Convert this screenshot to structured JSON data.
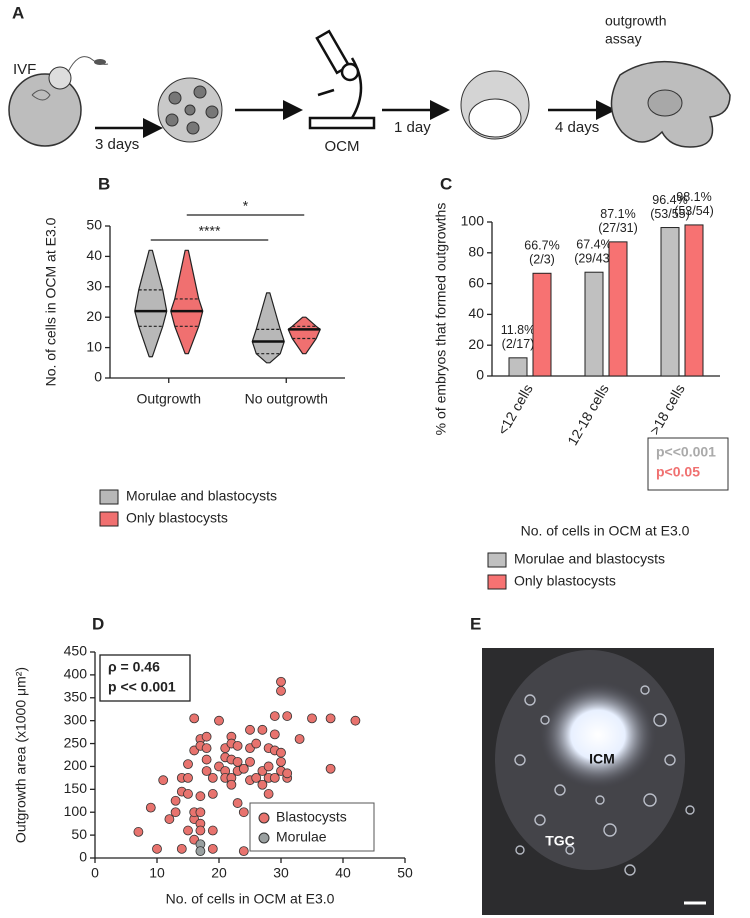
{
  "panel_labels": [
    "A",
    "B",
    "C",
    "D",
    "E"
  ],
  "schematic": {
    "ivf": "IVF",
    "step1": "3 days",
    "ocm": "OCM",
    "step2": "1 day",
    "step3": "4 days",
    "outgrowth_assay": [
      "outgrowth",
      "assay"
    ]
  },
  "image_panel": {
    "icm": "ICM",
    "tgc": "TGC"
  },
  "chart_data": [
    {
      "type": "violin",
      "ylabel": "No. of cells in OCM at E3.0",
      "categories": [
        "Outgrowth",
        "No outgrowth"
      ],
      "ylim": [
        0,
        50
      ],
      "yticks": [
        0,
        10,
        20,
        30,
        40,
        50
      ],
      "significance": [
        "****",
        "*"
      ],
      "series": [
        {
          "name": "Morulae and blastocysts",
          "color": "#b8b8b8",
          "min": [
            7,
            5
          ],
          "q1": [
            17,
            8
          ],
          "median": [
            22,
            12
          ],
          "q3": [
            29,
            16
          ],
          "max": [
            42,
            28
          ]
        },
        {
          "name": "Only blastocysts",
          "color": "#f07070",
          "min": [
            8,
            8
          ],
          "q1": [
            17,
            13
          ],
          "median": [
            22,
            16
          ],
          "q3": [
            26,
            17
          ],
          "max": [
            42,
            20
          ]
        }
      ]
    },
    {
      "type": "bar",
      "ylabel": "% of embryos that formed outgrowths",
      "xlabel": "No. of cells in OCM at E3.0",
      "categories": [
        "<12 cells",
        "12-18 cells",
        ">18 cells"
      ],
      "ylim": [
        0,
        100
      ],
      "yticks": [
        0,
        20,
        40,
        60,
        80,
        100
      ],
      "annotations": [
        "p<<0.001",
        "p<0.05"
      ],
      "series": [
        {
          "name": "Morulae and blastocysts",
          "color": "#c0c0c0",
          "values": [
            11.8,
            67.4,
            96.4
          ],
          "value_labels": [
            [
              "11.8%",
              "(2/17)"
            ],
            [
              "67.4%",
              "(29/43)"
            ],
            [
              "96.4%",
              "(53/55)"
            ]
          ]
        },
        {
          "name": "Only blastocysts",
          "color": "#f77272",
          "values": [
            66.7,
            87.1,
            98.1
          ],
          "value_labels": [
            [
              "66.7%",
              "(2/3)"
            ],
            [
              "87.1%",
              "(27/31)"
            ],
            [
              "98.1%",
              "(53/54)"
            ]
          ]
        }
      ]
    },
    {
      "type": "scatter",
      "xlabel": "No. of cells in OCM at E3.0",
      "ylabel": "Outgrowth area (x1000 μm²)",
      "xlim": [
        0,
        50
      ],
      "xticks": [
        0,
        10,
        20,
        30,
        40,
        50
      ],
      "ylim": [
        0,
        450
      ],
      "yticks": [
        0,
        50,
        100,
        150,
        200,
        250,
        300,
        350,
        400,
        450
      ],
      "annotations": [
        "ρ = 0.46",
        "p << 0.001"
      ],
      "series": [
        {
          "name": "Blastocysts",
          "color": "#e8736e",
          "x": [
            7,
            9,
            10,
            11,
            12,
            13,
            13,
            14,
            14,
            14,
            15,
            15,
            15,
            15,
            16,
            16,
            16,
            16,
            16,
            17,
            17,
            17,
            17,
            17,
            17,
            18,
            18,
            18,
            18,
            19,
            19,
            19,
            19,
            20,
            20,
            21,
            21,
            21,
            21,
            22,
            22,
            22,
            22,
            22,
            23,
            23,
            23,
            23,
            24,
            24,
            24,
            25,
            25,
            25,
            25,
            26,
            26,
            27,
            27,
            27,
            28,
            28,
            28,
            28,
            29,
            29,
            29,
            29,
            30,
            30,
            30,
            30,
            30,
            31,
            31,
            31,
            33,
            35,
            38,
            38,
            42
          ],
          "y": [
            57,
            110,
            20,
            170,
            85,
            125,
            100,
            20,
            175,
            145,
            60,
            140,
            175,
            205,
            235,
            305,
            40,
            85,
            100,
            260,
            245,
            135,
            100,
            75,
            60,
            240,
            190,
            215,
            265,
            20,
            60,
            175,
            140,
            300,
            200,
            240,
            220,
            190,
            175,
            265,
            250,
            215,
            175,
            160,
            210,
            245,
            190,
            120,
            15,
            195,
            100,
            240,
            280,
            210,
            170,
            175,
            250,
            280,
            160,
            190,
            200,
            240,
            175,
            140,
            235,
            270,
            175,
            310,
            385,
            365,
            210,
            230,
            190,
            175,
            185,
            310,
            260,
            305,
            305,
            195,
            300
          ]
        },
        {
          "name": "Morulae",
          "color": "#9aa0a0",
          "x": [
            17,
            17
          ],
          "y": [
            30,
            15
          ]
        }
      ]
    }
  ]
}
